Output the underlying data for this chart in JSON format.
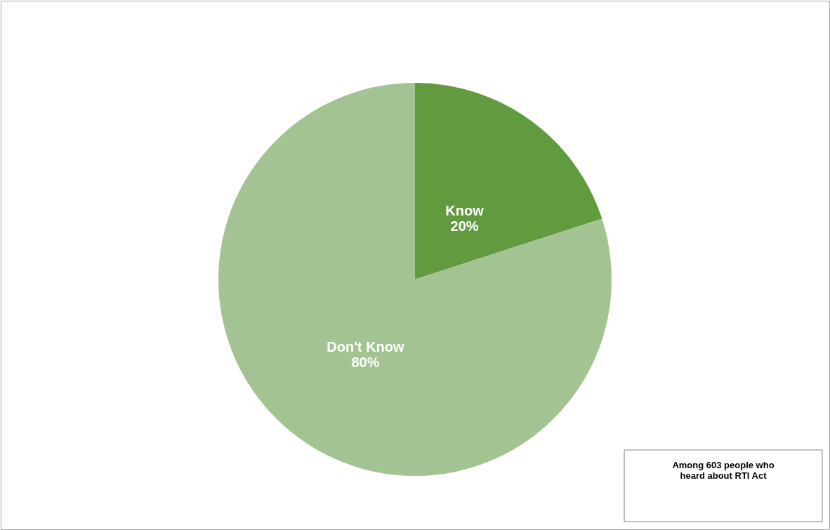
{
  "chart_data": {
    "type": "pie",
    "categories": [
      "Know",
      "Don't Know"
    ],
    "values": [
      20,
      80
    ],
    "colors": [
      "#629a3f",
      "#a3c492"
    ],
    "value_labels": [
      "20%",
      "80%"
    ],
    "annotations": [
      "Among 603 people who heard about RTI Act"
    ]
  }
}
